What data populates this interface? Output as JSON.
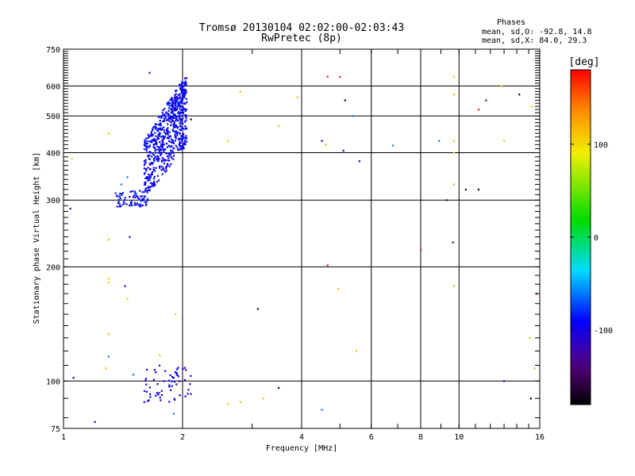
{
  "header": {
    "title_line1": "Tromsø 20130104 02:02:00-02:03:43",
    "title_line2": "RwPretec (8p)",
    "stats_title": "Phases",
    "stats_o": "mean, sd,O: -92.8, 14.8",
    "stats_x": "mean, sd,X:  84.0, 29.3"
  },
  "chart_data": {
    "type": "scatter",
    "xlabel": "Frequency [MHz]",
    "ylabel": "Stationary phase Virtual Height [km]",
    "xscale": "log",
    "yscale": "log",
    "xlim": [
      1,
      16
    ],
    "ylim": [
      75,
      750
    ],
    "xticks": [
      1,
      2,
      4,
      6,
      8,
      10,
      16
    ],
    "xtick_labels": [
      "1",
      "2",
      "4",
      "6",
      "8",
      "10",
      "16"
    ],
    "yticks": [
      75,
      100,
      200,
      300,
      400,
      500,
      600,
      750
    ],
    "ytick_labels": [
      "75",
      "100",
      "200",
      "300",
      "400",
      "500",
      "600",
      "750"
    ],
    "grid": true,
    "colorbar": {
      "label": "[deg]",
      "range": [
        -180,
        180
      ],
      "ticks": [
        100,
        0,
        -100
      ],
      "tick_labels": [
        "100",
        "0",
        "-100"
      ]
    },
    "points": [
      [
        1.04,
        285,
        -100
      ],
      [
        1.06,
        102,
        -100
      ],
      [
        1.05,
        386,
        110
      ],
      [
        1.3,
        236,
        110
      ],
      [
        1.3,
        450,
        110
      ],
      [
        1.3,
        186,
        110
      ],
      [
        1.3,
        182,
        110
      ],
      [
        1.3,
        133,
        110
      ],
      [
        1.3,
        116,
        -60
      ],
      [
        1.28,
        108,
        110
      ],
      [
        1.43,
        178,
        -100
      ],
      [
        1.47,
        240,
        -100
      ],
      [
        1.45,
        165,
        110
      ],
      [
        1.5,
        104,
        -60
      ],
      [
        1.65,
        650,
        -100
      ],
      [
        2.1,
        490,
        -170
      ],
      [
        2.6,
        430,
        110
      ],
      [
        2.8,
        580,
        110
      ],
      [
        3.1,
        155,
        -170
      ],
      [
        3.5,
        470,
        110
      ],
      [
        3.9,
        560,
        110
      ],
      [
        4.5,
        430,
        -100
      ],
      [
        4.6,
        420,
        60
      ],
      [
        4.65,
        635,
        170
      ],
      [
        4.65,
        202,
        170
      ],
      [
        5.0,
        634,
        170
      ],
      [
        4.95,
        175,
        110
      ],
      [
        5.1,
        405,
        -100
      ],
      [
        5.15,
        550,
        -170
      ],
      [
        5.4,
        500,
        -60
      ],
      [
        5.5,
        120,
        110
      ],
      [
        5.6,
        380,
        -100
      ],
      [
        6.8,
        418,
        -60
      ],
      [
        8.0,
        222,
        170
      ],
      [
        8.9,
        430,
        -60
      ],
      [
        9.3,
        300,
        -150
      ],
      [
        9.7,
        635,
        110
      ],
      [
        9.7,
        570,
        110
      ],
      [
        9.7,
        430,
        110
      ],
      [
        9.7,
        400,
        110
      ],
      [
        9.7,
        330,
        60
      ],
      [
        9.65,
        232,
        -150
      ],
      [
        9.7,
        178,
        60
      ],
      [
        10.4,
        320,
        -170
      ],
      [
        11.2,
        520,
        170
      ],
      [
        11.2,
        320,
        -170
      ],
      [
        11.7,
        550,
        -140
      ],
      [
        12.8,
        600,
        110
      ],
      [
        13.0,
        430,
        110
      ],
      [
        13.0,
        100,
        -100
      ],
      [
        14.2,
        570,
        -170
      ],
      [
        15.1,
        130,
        110
      ],
      [
        15.2,
        90,
        -170
      ],
      [
        15.5,
        108,
        60
      ],
      [
        15.7,
        170,
        170
      ],
      [
        15.3,
        530,
        110
      ],
      [
        1.2,
        78,
        -100
      ],
      [
        1.4,
        330,
        -60
      ],
      [
        1.45,
        345,
        -60
      ],
      [
        1.6,
        88,
        -100
      ],
      [
        1.75,
        117,
        110
      ],
      [
        1.9,
        82,
        -60
      ],
      [
        1.92,
        150,
        110
      ],
      [
        2.6,
        87,
        110
      ],
      [
        2.8,
        88,
        60
      ],
      [
        3.2,
        90,
        110
      ],
      [
        3.5,
        96,
        -170
      ],
      [
        4.5,
        84,
        -60
      ]
    ]
  }
}
